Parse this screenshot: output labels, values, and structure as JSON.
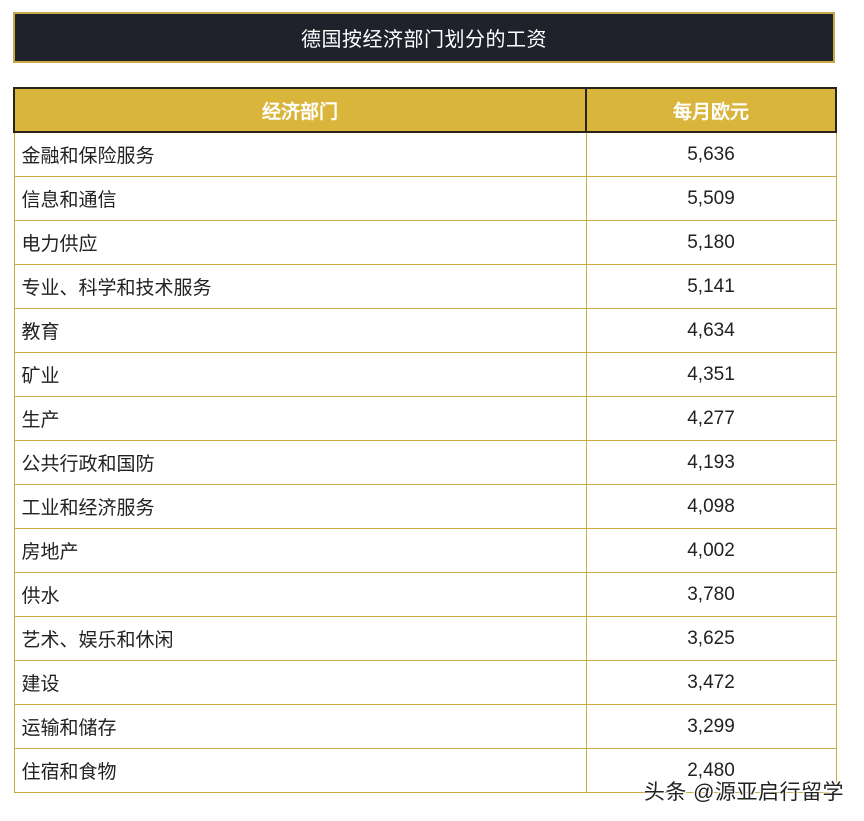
{
  "title": "德国按经济部门划分的工资",
  "colors": {
    "title_bg": "#1f212b",
    "title_border": "#c9aa45",
    "header_bg": "#d9b53c",
    "header_border": "#2a2418",
    "cell_border": "#c9aa45",
    "text": "#222222"
  },
  "table": {
    "headers": [
      "经济部门",
      "每月欧元"
    ],
    "rows": [
      {
        "sector": "金融和保险服务",
        "value": "5,636"
      },
      {
        "sector": "信息和通信",
        "value": "5,509"
      },
      {
        "sector": "电力供应",
        "value": "5,180"
      },
      {
        "sector": "专业、科学和技术服务",
        "value": "5,141"
      },
      {
        "sector": "教育",
        "value": "4,634"
      },
      {
        "sector": "矿业",
        "value": "4,351"
      },
      {
        "sector": "生产",
        "value": "4,277"
      },
      {
        "sector": "公共行政和国防",
        "value": "4,193"
      },
      {
        "sector": "工业和经济服务",
        "value": "4,098"
      },
      {
        "sector": "房地产",
        "value": "4,002"
      },
      {
        "sector": "供水",
        "value": "3,780"
      },
      {
        "sector": "艺术、娱乐和休闲",
        "value": "3,625"
      },
      {
        "sector": "建设",
        "value": "3,472"
      },
      {
        "sector": "运输和储存",
        "value": "3,299"
      },
      {
        "sector": "住宿和食物",
        "value": "2,480"
      }
    ]
  },
  "watermark": "头条 @源亚启行留学"
}
